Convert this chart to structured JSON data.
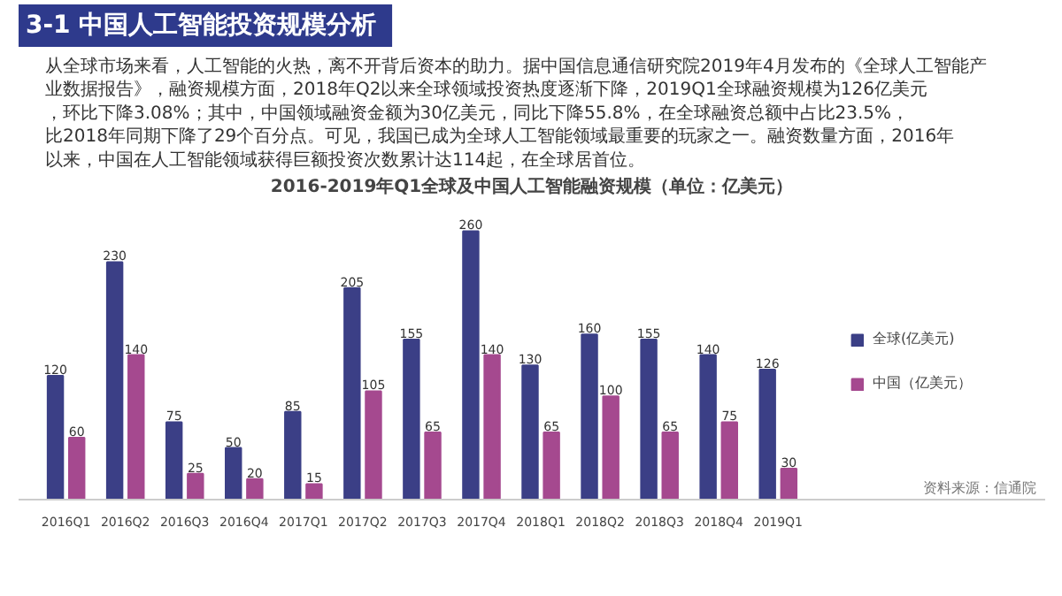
{
  "chart_data": {
    "type": "bar",
    "title": "2016-2019年Q1全球及中国人工智能融资规模（单位：亿美元）",
    "categories": [
      "2016Q1",
      "2016Q2",
      "2016Q3",
      "2016Q4",
      "2017Q1",
      "2017Q2",
      "2017Q3",
      "2017Q4",
      "2018Q1",
      "2018Q2",
      "2018Q3",
      "2018Q4",
      "2019Q1"
    ],
    "series": [
      {
        "name": "全球(亿美元)",
        "color": "#3b3f86",
        "values": [
          120,
          230,
          75,
          50,
          85,
          205,
          155,
          260,
          130,
          160,
          155,
          140,
          126
        ]
      },
      {
        "name": "中国（亿美元）",
        "color": "#a5498f",
        "values": [
          60,
          140,
          25,
          20,
          15,
          105,
          65,
          140,
          65,
          100,
          65,
          75,
          30
        ]
      }
    ],
    "data_labels": true,
    "legend": "right",
    "grid": false,
    "tick_labels": "x",
    "annotations": [
      "3-1  中国人工智能投资规模分析",
      "从全球市场来看，人工智能的火热，离不开背后资本的助力。据中国信息通信研究院2019年4月发布的《全球人工智能产业数据报告》，融资规模方面，2018年Q2以来全球领域投资热度逐渐下降，2019Q1全球融资规模为126亿美元，环比下降3.08%；其中，中国领域融资金额为30亿美元，同比下降55.8%，在全球融资总额中占比23.5%，比2018年同期下降了29个百分点。可见，我国已成为全球人工智能领域最重要的玩家之一。融资数量方面，2016年以来，中国在人工智能领域获得巨额投资次数累计达114起，在全球居首位。",
      "资料来源：信通院"
    ]
  }
}
